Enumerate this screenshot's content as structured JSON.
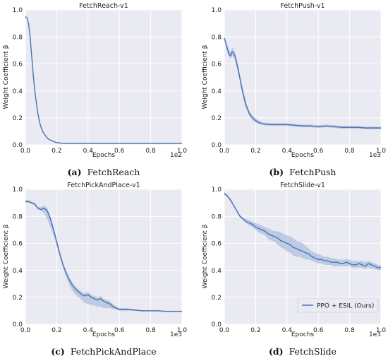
{
  "figure": {
    "captions": [
      {
        "letter": "(a)",
        "text": "FetchReach"
      },
      {
        "letter": "(b)",
        "text": "FetchPush"
      },
      {
        "letter": "(c)",
        "text": "FetchPickAndPlace"
      },
      {
        "letter": "(d)",
        "text": "FetchSlide"
      }
    ]
  },
  "colors": {
    "line": "#4c72b0",
    "band": "#a4b8dc",
    "plot_bg": "#eaeaf2",
    "grid": "#ffffff"
  },
  "chart_data": [
    {
      "type": "line",
      "title": "FetchReach-v1",
      "xlabel": "Epochs",
      "ylabel": "Weight Coefficient β",
      "xlim": [
        0,
        1.0
      ],
      "ylim": [
        0,
        1.0
      ],
      "xscale_label": "1e2",
      "xticks": [
        "0.0",
        "0.2",
        "0.4",
        "0.6",
        "0.8",
        "1.0"
      ],
      "yticks": [
        "0.0",
        "0.2",
        "0.4",
        "0.6",
        "0.8",
        "1.0"
      ],
      "grid": true,
      "legend": null,
      "series": [
        {
          "x": [
            0,
            0.01,
            0.02,
            0.03,
            0.04,
            0.05,
            0.06,
            0.07,
            0.08,
            0.09,
            0.1,
            0.11,
            0.12,
            0.13,
            0.14,
            0.15,
            0.17,
            0.19,
            0.21,
            0.23,
            0.25,
            0.3,
            0.35,
            0.4,
            0.5,
            0.6,
            0.7,
            0.8,
            0.9,
            1.0
          ],
          "y": [
            0.95,
            0.94,
            0.9,
            0.8,
            0.66,
            0.52,
            0.4,
            0.31,
            0.23,
            0.17,
            0.13,
            0.1,
            0.08,
            0.065,
            0.05,
            0.04,
            0.03,
            0.02,
            0.015,
            0.012,
            0.01,
            0.01,
            0.01,
            0.01,
            0.01,
            0.01,
            0.01,
            0.01,
            0.01,
            0.01
          ],
          "lower": [
            0.95,
            0.94,
            0.9,
            0.8,
            0.66,
            0.52,
            0.4,
            0.31,
            0.23,
            0.17,
            0.13,
            0.1,
            0.08,
            0.065,
            0.05,
            0.04,
            0.03,
            0.02,
            0.015,
            0.012,
            0.01,
            0.01,
            0.01,
            0.01,
            0.01,
            0.01,
            0.01,
            0.01,
            0.01,
            0.01
          ],
          "upper": [
            0.95,
            0.94,
            0.9,
            0.8,
            0.66,
            0.52,
            0.4,
            0.31,
            0.23,
            0.17,
            0.13,
            0.1,
            0.08,
            0.065,
            0.05,
            0.04,
            0.03,
            0.02,
            0.015,
            0.012,
            0.01,
            0.01,
            0.01,
            0.01,
            0.01,
            0.01,
            0.01,
            0.01,
            0.01,
            0.01
          ]
        }
      ]
    },
    {
      "type": "line",
      "title": "FetchPush-v1",
      "xlabel": "Epochs",
      "ylabel": "Weight Coefficient β",
      "xlim": [
        0,
        1.0
      ],
      "ylim": [
        0,
        1.0
      ],
      "xscale_label": "1e3",
      "xticks": [
        "0.0",
        "0.2",
        "0.4",
        "0.6",
        "0.8",
        "1.0"
      ],
      "yticks": [
        "0.0",
        "0.2",
        "0.4",
        "0.6",
        "0.8",
        "1.0"
      ],
      "grid": true,
      "legend": null,
      "series": [
        {
          "x": [
            0,
            0.01,
            0.02,
            0.03,
            0.04,
            0.05,
            0.06,
            0.07,
            0.08,
            0.09,
            0.1,
            0.11,
            0.12,
            0.13,
            0.14,
            0.15,
            0.16,
            0.18,
            0.2,
            0.22,
            0.25,
            0.3,
            0.35,
            0.4,
            0.45,
            0.5,
            0.55,
            0.6,
            0.65,
            0.7,
            0.75,
            0.8,
            0.85,
            0.9,
            0.95,
            1.0
          ],
          "y": [
            0.79,
            0.75,
            0.71,
            0.67,
            0.66,
            0.69,
            0.68,
            0.65,
            0.6,
            0.55,
            0.49,
            0.43,
            0.38,
            0.33,
            0.29,
            0.26,
            0.23,
            0.2,
            0.18,
            0.165,
            0.155,
            0.15,
            0.15,
            0.15,
            0.145,
            0.14,
            0.14,
            0.135,
            0.14,
            0.135,
            0.13,
            0.13,
            0.13,
            0.125,
            0.125,
            0.125
          ],
          "lower": [
            0.78,
            0.73,
            0.68,
            0.65,
            0.64,
            0.66,
            0.65,
            0.62,
            0.57,
            0.52,
            0.46,
            0.4,
            0.35,
            0.3,
            0.27,
            0.24,
            0.21,
            0.18,
            0.165,
            0.155,
            0.145,
            0.14,
            0.14,
            0.14,
            0.135,
            0.13,
            0.13,
            0.125,
            0.13,
            0.125,
            0.12,
            0.12,
            0.12,
            0.115,
            0.115,
            0.115
          ],
          "upper": [
            0.8,
            0.77,
            0.74,
            0.7,
            0.69,
            0.72,
            0.71,
            0.68,
            0.63,
            0.58,
            0.52,
            0.46,
            0.41,
            0.36,
            0.31,
            0.28,
            0.25,
            0.22,
            0.195,
            0.18,
            0.165,
            0.16,
            0.16,
            0.16,
            0.155,
            0.15,
            0.15,
            0.145,
            0.15,
            0.145,
            0.14,
            0.14,
            0.14,
            0.135,
            0.135,
            0.135
          ]
        }
      ]
    },
    {
      "type": "line",
      "title": "FetchPickAndPlace-v1",
      "xlabel": "Epochs",
      "ylabel": "Weight Coefficient β",
      "xlim": [
        0,
        1.0
      ],
      "ylim": [
        0,
        1.0
      ],
      "xscale_label": "1e3",
      "xticks": [
        "0.0",
        "0.2",
        "0.4",
        "0.6",
        "0.8",
        "1.0"
      ],
      "yticks": [
        "0.0",
        "0.2",
        "0.4",
        "0.6",
        "0.8",
        "1.0"
      ],
      "grid": true,
      "legend": null,
      "series": [
        {
          "x": [
            0,
            0.02,
            0.04,
            0.06,
            0.08,
            0.1,
            0.12,
            0.14,
            0.16,
            0.18,
            0.2,
            0.22,
            0.24,
            0.26,
            0.28,
            0.3,
            0.32,
            0.34,
            0.36,
            0.38,
            0.4,
            0.42,
            0.44,
            0.46,
            0.48,
            0.5,
            0.52,
            0.54,
            0.56,
            0.58,
            0.6,
            0.65,
            0.7,
            0.75,
            0.8,
            0.85,
            0.9,
            0.95,
            1.0
          ],
          "y": [
            0.91,
            0.91,
            0.9,
            0.89,
            0.86,
            0.85,
            0.86,
            0.84,
            0.78,
            0.7,
            0.61,
            0.52,
            0.44,
            0.38,
            0.33,
            0.29,
            0.26,
            0.24,
            0.22,
            0.21,
            0.22,
            0.2,
            0.19,
            0.18,
            0.19,
            0.17,
            0.16,
            0.15,
            0.13,
            0.12,
            0.11,
            0.11,
            0.105,
            0.1,
            0.1,
            0.1,
            0.095,
            0.095,
            0.095
          ],
          "lower": [
            0.9,
            0.9,
            0.89,
            0.88,
            0.85,
            0.84,
            0.82,
            0.78,
            0.72,
            0.66,
            0.58,
            0.5,
            0.42,
            0.35,
            0.29,
            0.25,
            0.22,
            0.2,
            0.18,
            0.16,
            0.15,
            0.14,
            0.14,
            0.13,
            0.13,
            0.12,
            0.12,
            0.12,
            0.11,
            0.11,
            0.1,
            0.1,
            0.1,
            0.095,
            0.095,
            0.095,
            0.09,
            0.09,
            0.09
          ],
          "upper": [
            0.92,
            0.92,
            0.91,
            0.9,
            0.87,
            0.87,
            0.88,
            0.86,
            0.8,
            0.72,
            0.63,
            0.54,
            0.46,
            0.4,
            0.35,
            0.31,
            0.28,
            0.26,
            0.24,
            0.23,
            0.24,
            0.22,
            0.21,
            0.2,
            0.21,
            0.19,
            0.18,
            0.17,
            0.15,
            0.13,
            0.12,
            0.12,
            0.11,
            0.105,
            0.105,
            0.105,
            0.1,
            0.1,
            0.1
          ]
        }
      ]
    },
    {
      "type": "line",
      "title": "FetchSlide-v1",
      "xlabel": "Epochs",
      "ylabel": "Weight Coefficient β",
      "xlim": [
        0,
        1.0
      ],
      "ylim": [
        0,
        1.0
      ],
      "xscale_label": "1e3",
      "xticks": [
        "0.0",
        "0.2",
        "0.4",
        "0.6",
        "0.8",
        "1.0"
      ],
      "yticks": [
        "0.0",
        "0.2",
        "0.4",
        "0.6",
        "0.8",
        "1.0"
      ],
      "grid": true,
      "legend": {
        "position": "lower-right",
        "entries": [
          "PPO + ESIL (Ours)"
        ]
      },
      "series": [
        {
          "name": "PPO + ESIL (Ours)",
          "x": [
            0,
            0.02,
            0.04,
            0.06,
            0.08,
            0.1,
            0.12,
            0.14,
            0.16,
            0.18,
            0.2,
            0.22,
            0.24,
            0.26,
            0.28,
            0.3,
            0.32,
            0.34,
            0.36,
            0.38,
            0.4,
            0.42,
            0.44,
            0.46,
            0.48,
            0.5,
            0.52,
            0.54,
            0.56,
            0.58,
            0.6,
            0.62,
            0.64,
            0.66,
            0.68,
            0.7,
            0.72,
            0.74,
            0.76,
            0.78,
            0.8,
            0.82,
            0.84,
            0.86,
            0.88,
            0.9,
            0.92,
            0.94,
            0.96,
            0.98,
            1.0
          ],
          "y": [
            0.97,
            0.95,
            0.92,
            0.88,
            0.84,
            0.8,
            0.78,
            0.76,
            0.75,
            0.74,
            0.72,
            0.71,
            0.7,
            0.69,
            0.67,
            0.66,
            0.65,
            0.64,
            0.62,
            0.61,
            0.6,
            0.59,
            0.57,
            0.56,
            0.55,
            0.54,
            0.53,
            0.52,
            0.5,
            0.49,
            0.48,
            0.48,
            0.47,
            0.47,
            0.46,
            0.46,
            0.46,
            0.45,
            0.45,
            0.46,
            0.45,
            0.44,
            0.44,
            0.45,
            0.44,
            0.43,
            0.45,
            0.44,
            0.43,
            0.42,
            0.42
          ],
          "lower": [
            0.96,
            0.94,
            0.91,
            0.87,
            0.83,
            0.79,
            0.77,
            0.75,
            0.73,
            0.72,
            0.7,
            0.68,
            0.67,
            0.66,
            0.63,
            0.62,
            0.61,
            0.59,
            0.57,
            0.56,
            0.54,
            0.53,
            0.51,
            0.5,
            0.5,
            0.49,
            0.48,
            0.48,
            0.47,
            0.46,
            0.45,
            0.45,
            0.44,
            0.44,
            0.44,
            0.43,
            0.43,
            0.43,
            0.43,
            0.43,
            0.43,
            0.42,
            0.42,
            0.42,
            0.42,
            0.41,
            0.42,
            0.41,
            0.41,
            0.4,
            0.4
          ],
          "upper": [
            0.98,
            0.96,
            0.93,
            0.89,
            0.85,
            0.81,
            0.79,
            0.78,
            0.77,
            0.76,
            0.75,
            0.74,
            0.73,
            0.72,
            0.71,
            0.7,
            0.69,
            0.69,
            0.68,
            0.67,
            0.66,
            0.65,
            0.64,
            0.62,
            0.61,
            0.6,
            0.58,
            0.56,
            0.54,
            0.53,
            0.52,
            0.51,
            0.5,
            0.5,
            0.49,
            0.49,
            0.48,
            0.48,
            0.48,
            0.48,
            0.48,
            0.47,
            0.47,
            0.47,
            0.47,
            0.46,
            0.47,
            0.46,
            0.45,
            0.44,
            0.44
          ]
        }
      ]
    }
  ]
}
